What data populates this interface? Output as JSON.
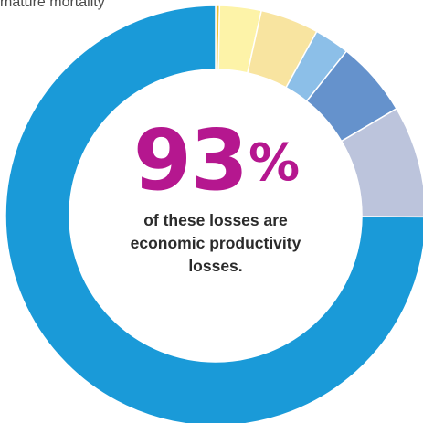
{
  "header": {
    "caption": "mature mortality"
  },
  "center": {
    "value": "93",
    "unit": "%",
    "caption_lines": [
      "of these losses are",
      "economic productivity",
      "losses."
    ]
  },
  "chart_data": {
    "type": "pie",
    "donut": true,
    "title": "",
    "segments": [
      {
        "value": 0.3,
        "color": "#f0c030"
      },
      {
        "value": 3.2,
        "color": "#fdf3a8"
      },
      {
        "value": 4.5,
        "color": "#f8e4a0"
      },
      {
        "value": 2.7,
        "color": "#8cbfe8"
      },
      {
        "value": 5.8,
        "color": "#6592cc"
      },
      {
        "value": 8.6,
        "color": "#bcc4dc"
      },
      {
        "value": 74.9,
        "color": "#1a9ad8"
      }
    ]
  }
}
